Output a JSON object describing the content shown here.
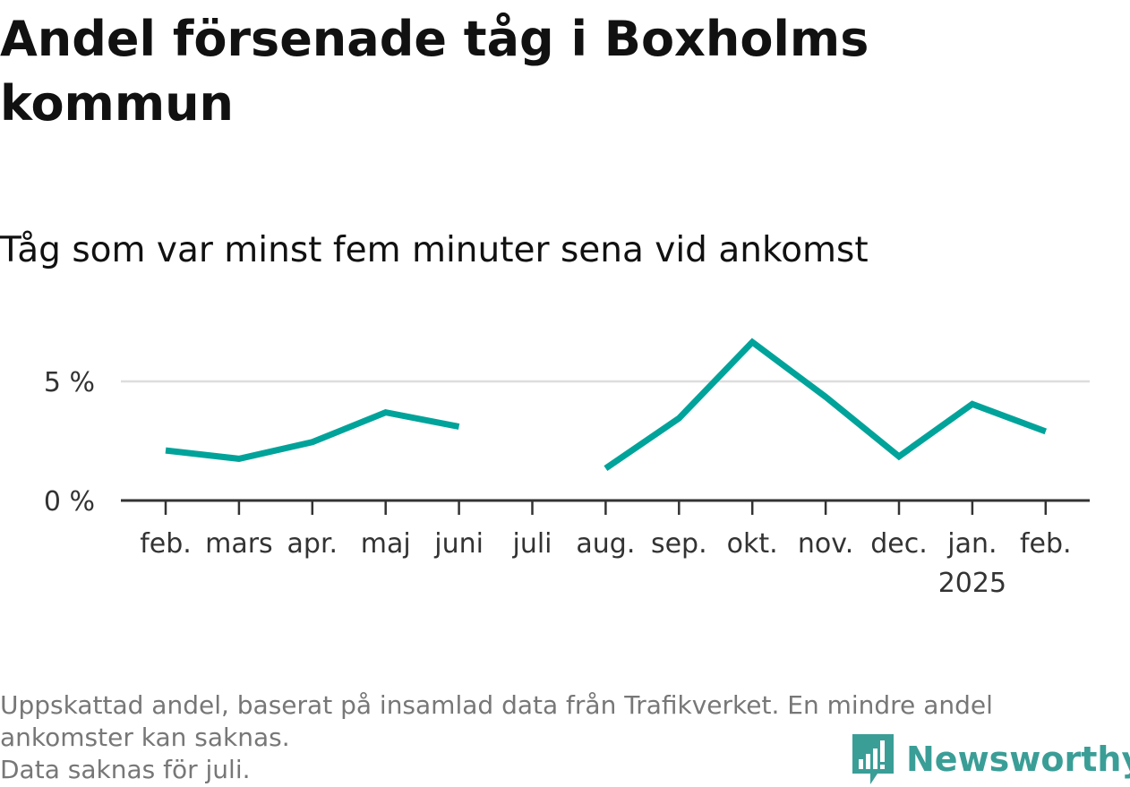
{
  "title": "Andel försenade tåg i Boxholms kommun",
  "subtitle": "Tåg som var minst fem minuter sena vid ankomst",
  "footer": {
    "note1": "Uppskattad andel, baserat på insamlad data från Trafikverket. En mindre andel ankomster kan saknas.",
    "note2": "Data saknas för juli."
  },
  "logo": {
    "text": "Newsworthy",
    "icon": "newsworthy-logo-icon"
  },
  "colors": {
    "line": "#00a39a",
    "axis": "#333333",
    "grid": "#dddddd",
    "logo": "#3a9e97"
  },
  "chart_data": {
    "type": "line",
    "title": "Andel försenade tåg i Boxholms kommun",
    "subtitle": "Tåg som var minst fem minuter sena vid ankomst",
    "categories": [
      "feb.",
      "mars",
      "apr.",
      "maj",
      "juni",
      "juli",
      "aug.",
      "sep.",
      "okt.",
      "nov.",
      "dec.",
      "jan.",
      "feb."
    ],
    "category_sublabels": [
      "",
      "",
      "",
      "",
      "",
      "",
      "",
      "",
      "",
      "",
      "",
      "2025",
      ""
    ],
    "series": [
      {
        "values": [
          2.1,
          1.75,
          2.45,
          3.7,
          3.1,
          null,
          1.35,
          3.45,
          6.65,
          4.35,
          1.85,
          4.05,
          2.9
        ]
      }
    ],
    "y_ticks": [
      {
        "value": 0,
        "label": "0 %"
      },
      {
        "value": 5,
        "label": "5 %"
      }
    ],
    "ylim": [
      0,
      7.2
    ],
    "grid": true,
    "xlabel": "",
    "ylabel": ""
  }
}
